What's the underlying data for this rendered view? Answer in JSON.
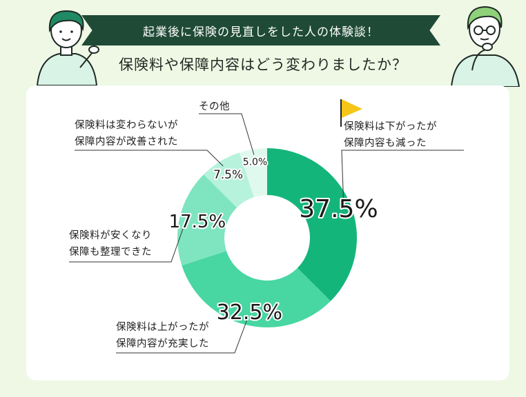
{
  "header": {
    "banner": "起業後に保険の見直しをした人の体験談！",
    "subtitle": "保険料や保障内容はどう変わりましたか？"
  },
  "colors": {
    "banner_bg": "#1f4a36",
    "page_bg": "#eef8e4",
    "flag": "#f5c518"
  },
  "chart_data": {
    "type": "pie",
    "donut": true,
    "slices": [
      {
        "label_lines": [
          "保険料は下がったが",
          "保障内容も減った"
        ],
        "value": 37.5,
        "display": "37.5%",
        "color": "#14b57b"
      },
      {
        "label_lines": [
          "保険料は上がったが",
          "保障内容が充実した"
        ],
        "value": 32.5,
        "display": "32.5%",
        "color": "#48d6a2"
      },
      {
        "label_lines": [
          "保険料が安くなり",
          "保障も整理できた"
        ],
        "value": 17.5,
        "display": "17.5%",
        "color": "#7ee5c0"
      },
      {
        "label_lines": [
          "保険料は変わらないが",
          "保障内容が改善された"
        ],
        "value": 7.5,
        "display": "7.5%",
        "color": "#b6f2dc"
      },
      {
        "label_lines": [
          "その他"
        ],
        "value": 5.0,
        "display": "5.0%",
        "color": "#e0f9ef"
      }
    ]
  }
}
